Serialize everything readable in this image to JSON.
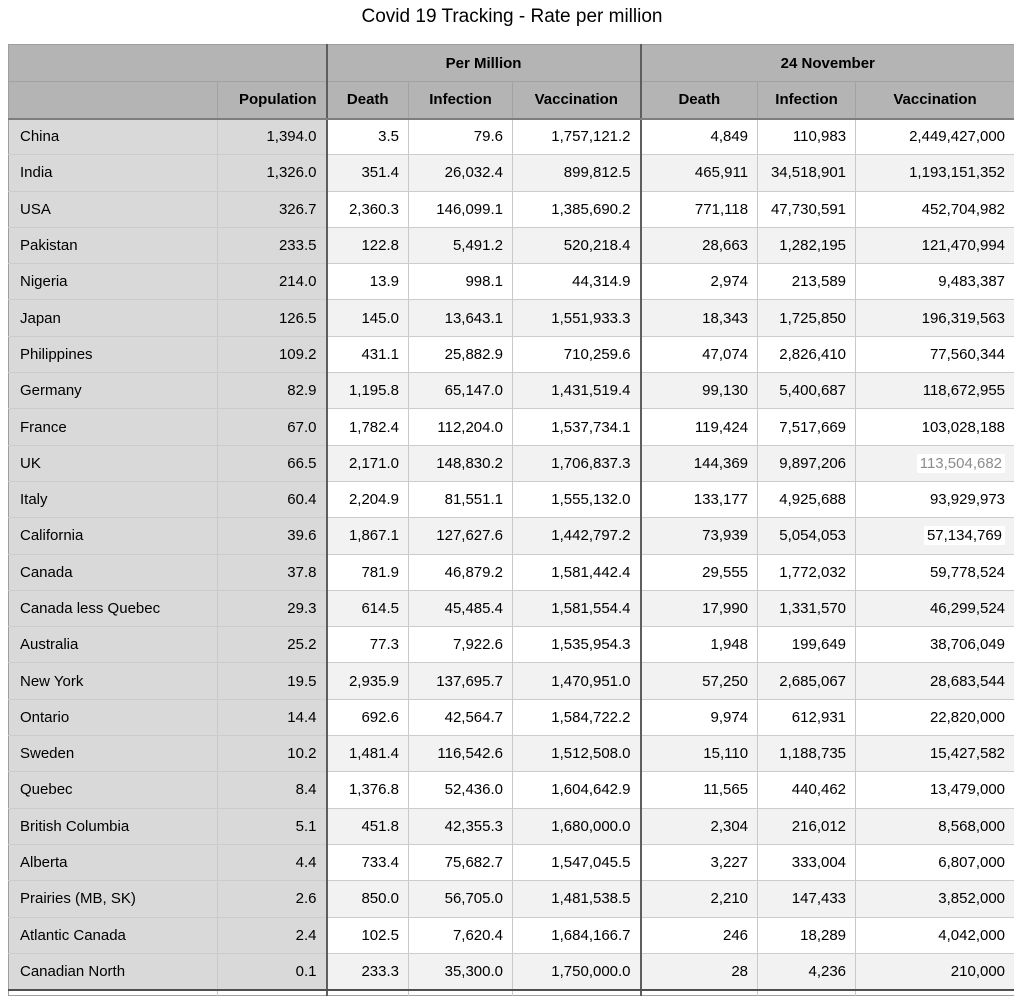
{
  "title": "Covid 19 Tracking - Rate per million",
  "chart_data": {
    "type": "table",
    "title": "Covid 19 Tracking - Rate per million",
    "group_headers": [
      {
        "label": "",
        "span": 2
      },
      {
        "label": "Per Million",
        "span": 3
      },
      {
        "label": "24 November",
        "span": 3
      }
    ],
    "columns": [
      "",
      "Population",
      "Death",
      "Infection",
      "Vaccination",
      "Death",
      "Infection",
      "Vaccination"
    ],
    "rows": [
      [
        "China",
        "1,394.0",
        "3.5",
        "79.6",
        "1,757,121.2",
        "4,849",
        "110,983",
        "2,449,427,000"
      ],
      [
        "India",
        "1,326.0",
        "351.4",
        "26,032.4",
        "899,812.5",
        "465,911",
        "34,518,901",
        "1,193,151,352"
      ],
      [
        "USA",
        "326.7",
        "2,360.3",
        "146,099.1",
        "1,385,690.2",
        "771,118",
        "47,730,591",
        "452,704,982"
      ],
      [
        "Pakistan",
        "233.5",
        "122.8",
        "5,491.2",
        "520,218.4",
        "28,663",
        "1,282,195",
        "121,470,994"
      ],
      [
        "Nigeria",
        "214.0",
        "13.9",
        "998.1",
        "44,314.9",
        "2,974",
        "213,589",
        "9,483,387"
      ],
      [
        "Japan",
        "126.5",
        "145.0",
        "13,643.1",
        "1,551,933.3",
        "18,343",
        "1,725,850",
        "196,319,563"
      ],
      [
        "Philippines",
        "109.2",
        "431.1",
        "25,882.9",
        "710,259.6",
        "47,074",
        "2,826,410",
        "77,560,344"
      ],
      [
        "Germany",
        "82.9",
        "1,195.8",
        "65,147.0",
        "1,431,519.4",
        "99,130",
        "5,400,687",
        "118,672,955"
      ],
      [
        "France",
        "67.0",
        "1,782.4",
        "112,204.0",
        "1,537,734.1",
        "119,424",
        "7,517,669",
        "103,028,188"
      ],
      [
        "UK",
        "66.5",
        "2,171.0",
        "148,830.2",
        "1,706,837.3",
        "144,369",
        "9,897,206",
        "113,504,682"
      ],
      [
        "Italy",
        "60.4",
        "2,204.9",
        "81,551.1",
        "1,555,132.0",
        "133,177",
        "4,925,688",
        "93,929,973"
      ],
      [
        "California",
        "39.6",
        "1,867.1",
        "127,627.6",
        "1,442,797.2",
        "73,939",
        "5,054,053",
        "57,134,769"
      ],
      [
        "Canada",
        "37.8",
        "781.9",
        "46,879.2",
        "1,581,442.4",
        "29,555",
        "1,772,032",
        "59,778,524"
      ],
      [
        "Canada less Quebec",
        "29.3",
        "614.5",
        "45,485.4",
        "1,581,554.4",
        "17,990",
        "1,331,570",
        "46,299,524"
      ],
      [
        "Australia",
        "25.2",
        "77.3",
        "7,922.6",
        "1,535,954.3",
        "1,948",
        "199,649",
        "38,706,049"
      ],
      [
        "New York",
        "19.5",
        "2,935.9",
        "137,695.7",
        "1,470,951.0",
        "57,250",
        "2,685,067",
        "28,683,544"
      ],
      [
        "Ontario",
        "14.4",
        "692.6",
        "42,564.7",
        "1,584,722.2",
        "9,974",
        "612,931",
        "22,820,000"
      ],
      [
        "Sweden",
        "10.2",
        "1,481.4",
        "116,542.6",
        "1,512,508.0",
        "15,110",
        "1,188,735",
        "15,427,582"
      ],
      [
        "Quebec",
        "8.4",
        "1,376.8",
        "52,436.0",
        "1,604,642.9",
        "11,565",
        "440,462",
        "13,479,000"
      ],
      [
        "British Columbia",
        "5.1",
        "451.8",
        "42,355.3",
        "1,680,000.0",
        "2,304",
        "216,012",
        "8,568,000"
      ],
      [
        "Alberta",
        "4.4",
        "733.4",
        "75,682.7",
        "1,547,045.5",
        "3,227",
        "333,004",
        "6,807,000"
      ],
      [
        "Prairies (MB, SK)",
        "2.6",
        "850.0",
        "56,705.0",
        "1,481,538.5",
        "2,210",
        "147,433",
        "3,852,000"
      ],
      [
        "Atlantic Canada",
        "2.4",
        "102.5",
        "7,620.4",
        "1,684,166.7",
        "246",
        "18,289",
        "4,042,000"
      ],
      [
        "Canadian North",
        "0.1",
        "233.3",
        "35,300.0",
        "1,750,000.0",
        "28",
        "4,236",
        "210,000"
      ]
    ],
    "highlight_cells": [
      {
        "row_index": 9,
        "col_index": 7,
        "muted": true
      },
      {
        "row_index": 11,
        "col_index": 7,
        "muted": false
      }
    ]
  },
  "colors": {
    "header_bg": "#b4b4b4",
    "label_col_bg": "#d9d9d9",
    "row_even_bg": "#ffffff",
    "row_odd_bg": "#f2f2f2",
    "grid_light": "#c9c9c9",
    "grid_mid": "#9e9e9e",
    "grid_dark": "#5e5e5e",
    "muted_text": "#8c8c8c"
  }
}
